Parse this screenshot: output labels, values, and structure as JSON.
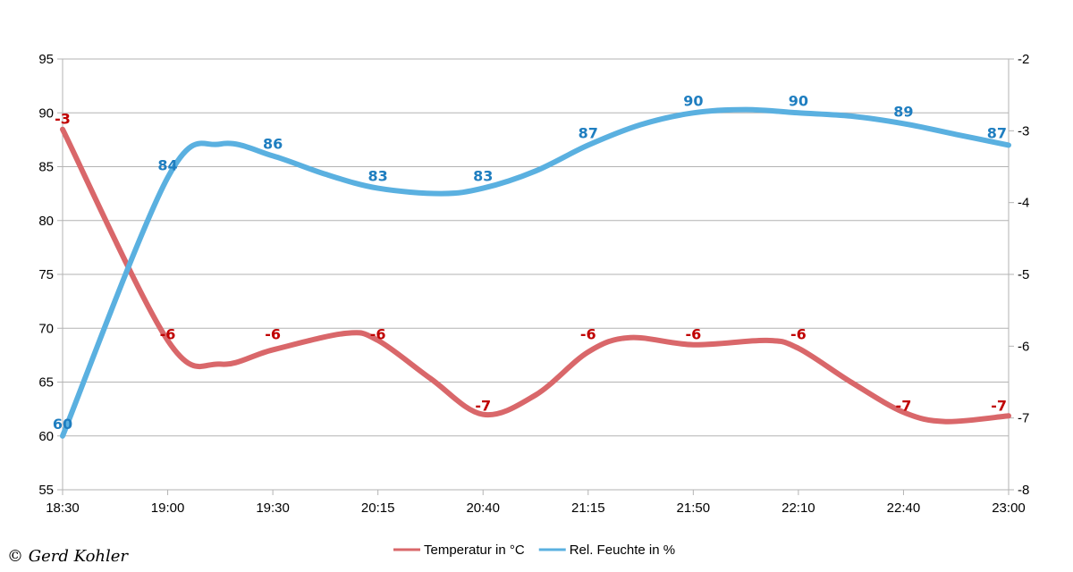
{
  "chart_data": {
    "type": "line",
    "x": [
      "18:30",
      "19:00",
      "19:30",
      "20:15",
      "20:40",
      "21:15",
      "21:50",
      "22:10",
      "22:40",
      "23:00"
    ],
    "y_left": {
      "min": 55,
      "max": 95,
      "step": 5
    },
    "y_right": {
      "min": -8,
      "max": -2,
      "step": 1
    },
    "series": [
      {
        "name": "Temperatur in °C",
        "axis": "right",
        "color": "#d9676a",
        "label_color": "#c00000",
        "values": [
          -3,
          -6,
          -6,
          -6,
          -7,
          -6,
          -6,
          -6,
          -7,
          -7
        ],
        "curve": [
          [
            0,
            -2.98
          ],
          [
            1,
            -5.92
          ],
          [
            1.5,
            -6.25
          ],
          [
            2,
            -6.05
          ],
          [
            2.7,
            -5.82
          ],
          [
            3,
            -5.92
          ],
          [
            3.5,
            -6.45
          ],
          [
            4,
            -6.95
          ],
          [
            4.5,
            -6.68
          ],
          [
            5,
            -6.08
          ],
          [
            5.4,
            -5.88
          ],
          [
            6,
            -5.98
          ],
          [
            6.7,
            -5.92
          ],
          [
            7,
            -6.03
          ],
          [
            7.5,
            -6.5
          ],
          [
            8,
            -6.92
          ],
          [
            8.4,
            -7.05
          ],
          [
            9,
            -6.97
          ]
        ]
      },
      {
        "name": "Rel. Feuchte in %",
        "axis": "left",
        "color": "#5ab0e0",
        "label_color": "#1f7ec0",
        "values": [
          60,
          84,
          86,
          83,
          83,
          87,
          90,
          90,
          89,
          87
        ],
        "curve": [
          [
            0,
            60
          ],
          [
            1,
            84
          ],
          [
            1.5,
            87.1
          ],
          [
            2,
            86
          ],
          [
            2.5,
            84.3
          ],
          [
            3,
            83
          ],
          [
            3.6,
            82.5
          ],
          [
            4,
            83
          ],
          [
            4.5,
            84.6
          ],
          [
            5,
            87
          ],
          [
            5.5,
            88.9
          ],
          [
            6,
            90
          ],
          [
            6.5,
            90.3
          ],
          [
            7,
            90
          ],
          [
            7.5,
            89.7
          ],
          [
            8,
            89
          ],
          [
            8.5,
            88
          ],
          [
            9,
            87
          ]
        ]
      }
    ],
    "grid": true,
    "legend_position": "bottom-center"
  },
  "copyright": "© Gerd Kohler"
}
